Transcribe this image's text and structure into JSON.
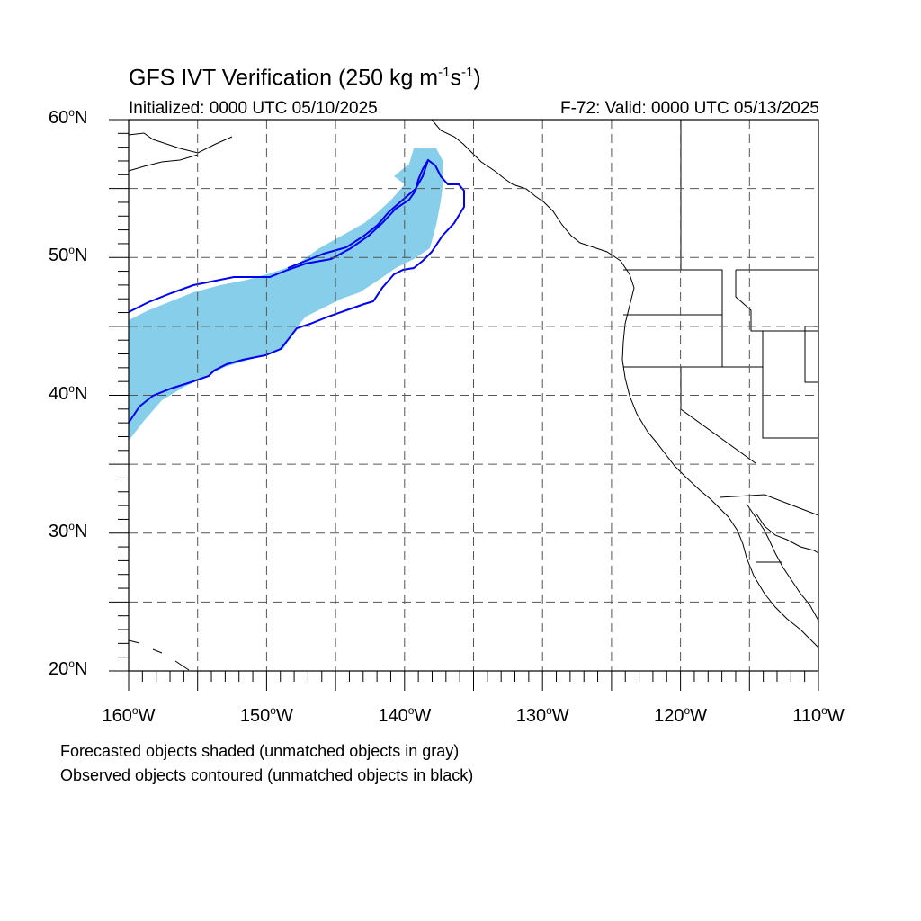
{
  "title": {
    "main": "GFS IVT Verification (250 kg m",
    "sup1": "-1",
    "mid": "s",
    "sup2": "-1",
    "end": ")"
  },
  "subtitle_left": "Initialized: 0000 UTC 05/10/2025",
  "subtitle_right": "F-72: Valid: 0000 UTC 05/13/2025",
  "map": {
    "lon_range": [
      -160,
      -110
    ],
    "lat_range": [
      20,
      60
    ],
    "grid": "dashed every 5 degrees",
    "lat_labels": [
      {
        "value": 60,
        "text": "60",
        "hemi": "N"
      },
      {
        "value": 50,
        "text": "50",
        "hemi": "N"
      },
      {
        "value": 40,
        "text": "40",
        "hemi": "N"
      },
      {
        "value": 30,
        "text": "30",
        "hemi": "N"
      },
      {
        "value": 20,
        "text": "20",
        "hemi": "N"
      }
    ],
    "lon_labels": [
      {
        "value": -160,
        "text": "160",
        "hemi": "W"
      },
      {
        "value": -150,
        "text": "150",
        "hemi": "W"
      },
      {
        "value": -140,
        "text": "140",
        "hemi": "W"
      },
      {
        "value": -130,
        "text": "130",
        "hemi": "W"
      },
      {
        "value": -120,
        "text": "120",
        "hemi": "W"
      },
      {
        "value": -110,
        "text": "110",
        "hemi": "W"
      }
    ],
    "forecast_object_color": "#87ceeb",
    "observed_contour_color": "#0000ee"
  },
  "footnotes": {
    "line1": "Forecasted objects shaded (unmatched objects in gray)",
    "line2": "Observed objects contoured (unmatched objects in black)"
  }
}
